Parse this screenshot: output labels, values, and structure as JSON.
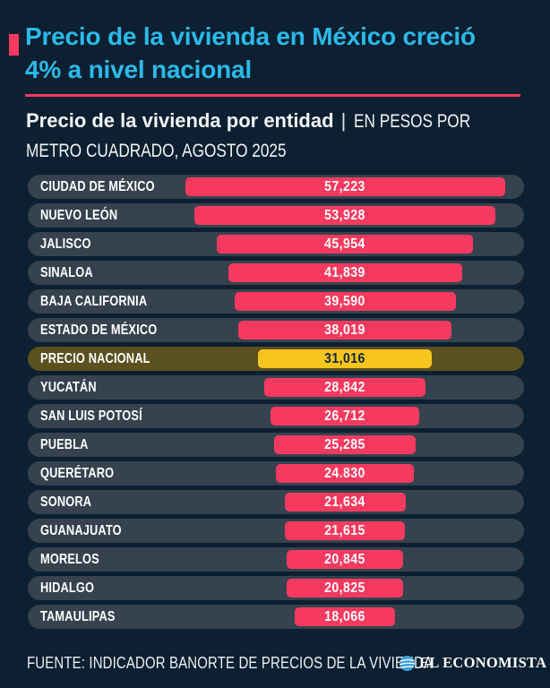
{
  "title": {
    "line1": "Precio de la vivienda en México creció",
    "line2": "4% a nivel nacional"
  },
  "subtitle": {
    "bold": "Precio de la vivienda por entidad",
    "separator": "|",
    "normal_line1": "EN PESOS POR",
    "normal_line2": "METRO CUADRADO, AGOSTO 2025"
  },
  "footer": {
    "source": "FUENTE: INDICADOR BANORTE DE PRECIOS DE LA VIVIENDA",
    "brand": "EL ECONOMISTA",
    "brand_icon": "el-economista-globe-icon"
  },
  "colors": {
    "background": "#0C2031",
    "title_cyan": "#2CB9E9",
    "accent_pink": "#F63A5F",
    "bar_pink": "#F63A5F",
    "bar_yellow": "#F7C51E",
    "row_pill": "#36424E",
    "row_pill_highlight": "#5A511F",
    "value_on_yellow": "#12263A",
    "text_white": "#FFFFFF",
    "logo_blue": "#3FA3D6"
  },
  "chart_data": {
    "type": "bar",
    "orientation": "horizontal-centered",
    "title": "Precio de la vivienda por entidad",
    "units": "EN PESOS POR METRO CUADRADO, AGOSTO 2025",
    "categories": [
      "CIUDAD DE MÉXICO",
      "NUEVO LEÓN",
      "JALISCO",
      "SINALOA",
      "BAJA CALIFORNIA",
      "ESTADO DE MÉXICO",
      "PRECIO NACIONAL",
      "YUCATÁN",
      "SAN LUIS POTOSÍ",
      "PUEBLA",
      "QUERÉTARO",
      "SONORA",
      "GUANAJUATO",
      "MORELOS",
      "HIDALGO",
      "TAMAULIPAS"
    ],
    "values": [
      57223,
      53928,
      45954,
      41839,
      39590,
      38019,
      31016,
      28842,
      26712,
      25285,
      24830,
      21634,
      21615,
      20845,
      20825,
      18066
    ],
    "value_labels": [
      "57,223",
      "53,928",
      "45,954",
      "41,839",
      "39,590",
      "38,019",
      "31,016",
      "28,842",
      "26,712",
      "25,285",
      "24.830",
      "21,634",
      "21,615",
      "20,845",
      "20,825",
      "18,066"
    ],
    "highlight_index": 6,
    "highlight_label": "PRECIO NACIONAL",
    "xlim": [
      0,
      57223
    ],
    "grid": false,
    "legend": false,
    "national_growth_note": "4% a nivel nacional"
  }
}
